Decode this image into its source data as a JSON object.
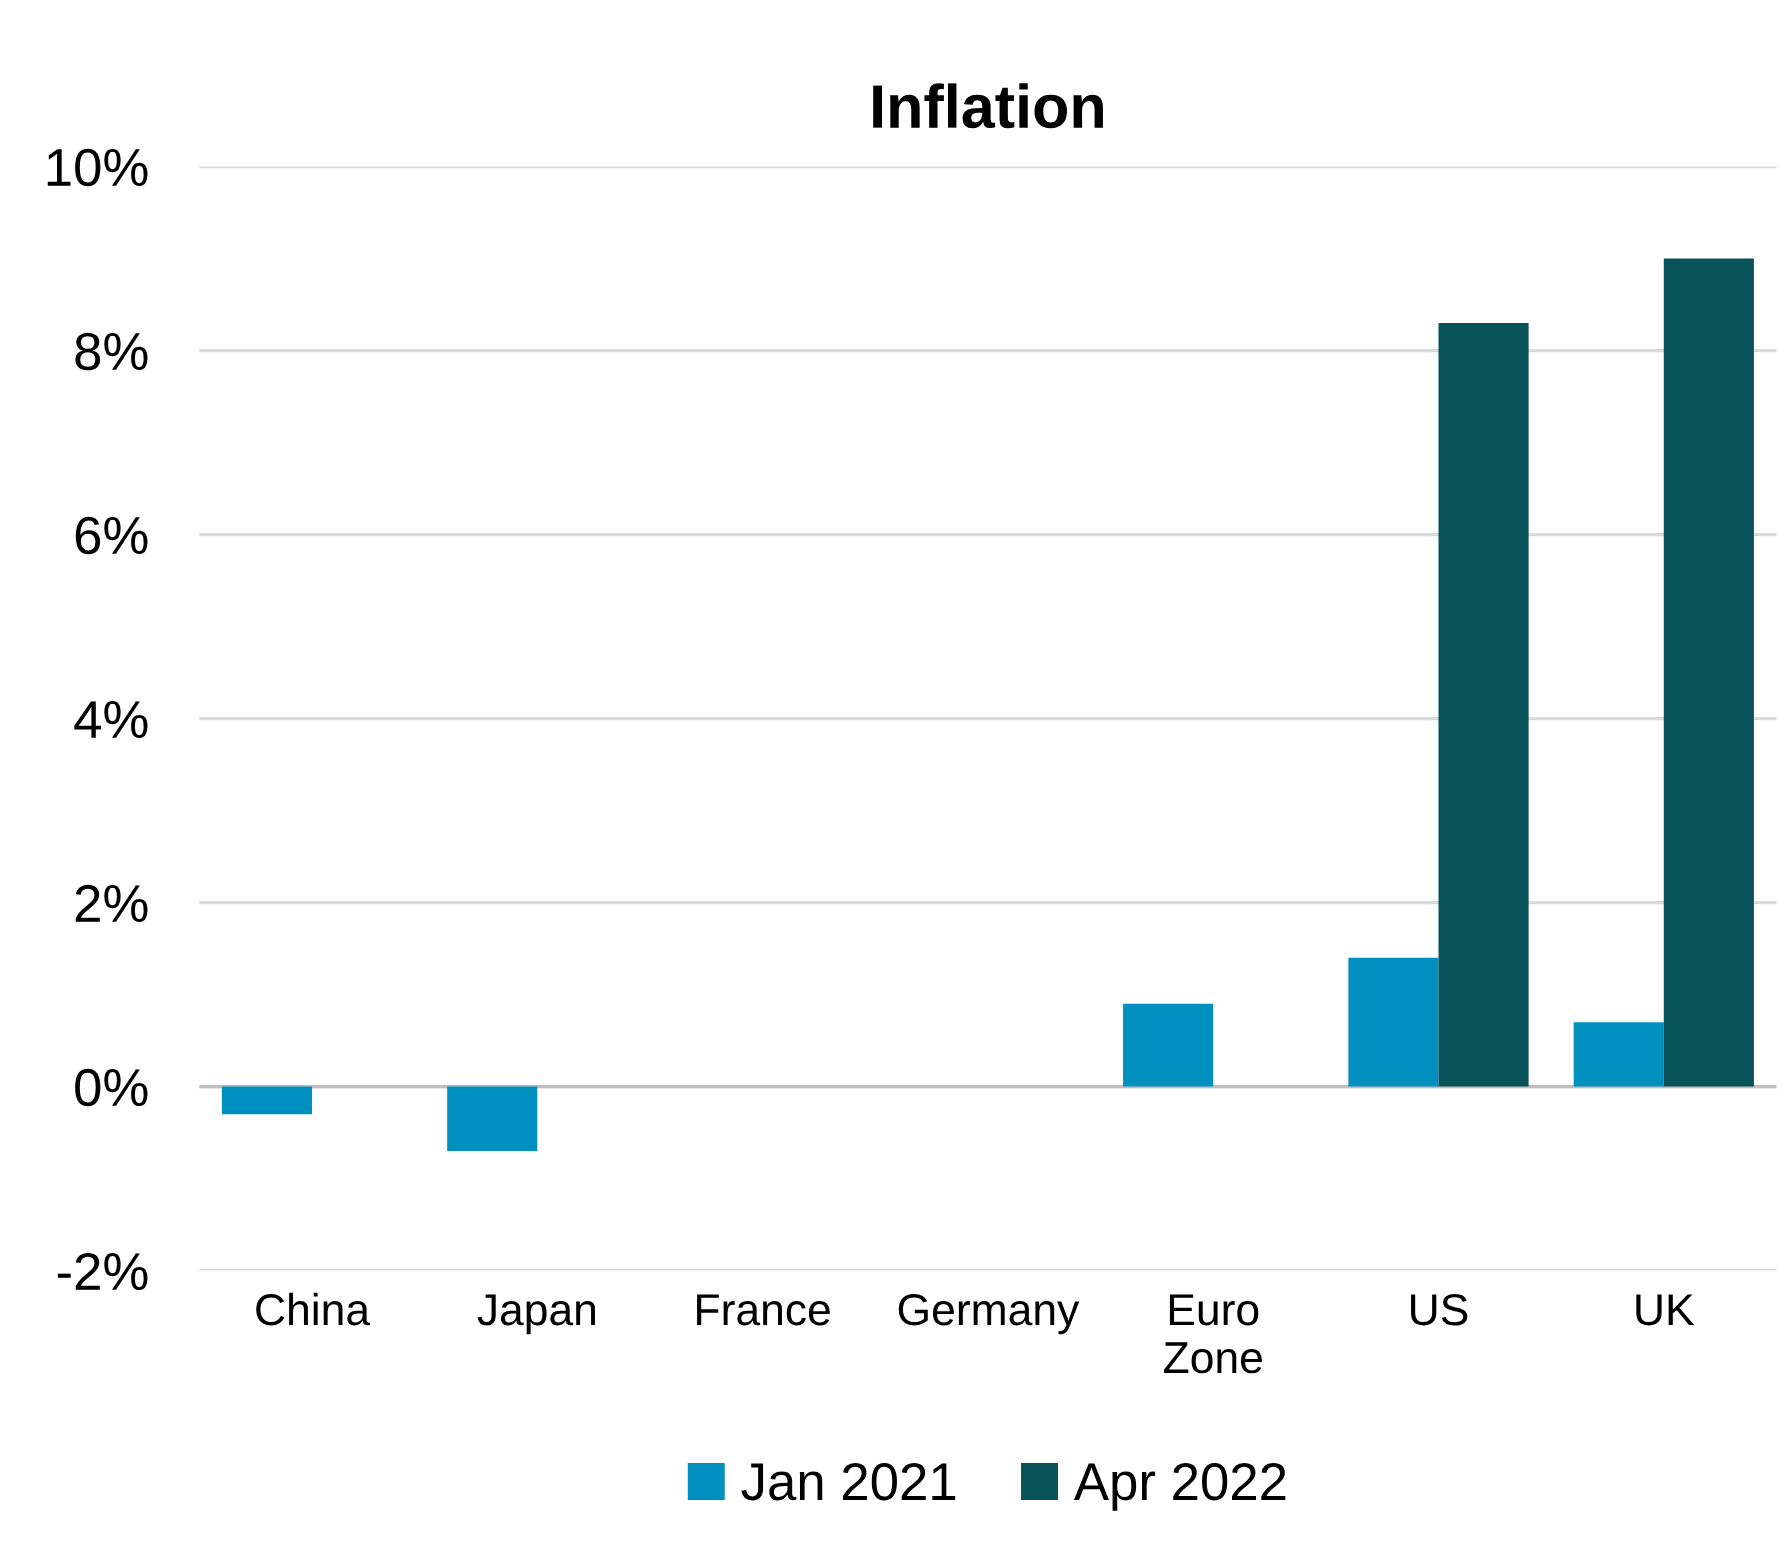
{
  "chart_data": {
    "type": "bar",
    "title": "Inflation",
    "categories": [
      "China",
      "Japan",
      "France",
      "Germany",
      "Euro\nZone",
      "US",
      "UK"
    ],
    "series": [
      {
        "name": "Jan 2021",
        "color": "#0090bf",
        "values": [
          -0.3,
          -0.7,
          null,
          null,
          0.9,
          1.4,
          0.7
        ]
      },
      {
        "name": "Apr 2022",
        "color": "#08525a",
        "values": [
          null,
          null,
          null,
          null,
          null,
          8.3,
          9.0
        ]
      }
    ],
    "ylim": [
      -2,
      10
    ],
    "yticks": [
      {
        "value": -2,
        "label": "-2%"
      },
      {
        "value": 0,
        "label": "0%"
      },
      {
        "value": 2,
        "label": "2%"
      },
      {
        "value": 4,
        "label": "4%"
      },
      {
        "value": 6,
        "label": "6%"
      },
      {
        "value": 8,
        "label": "8%"
      },
      {
        "value": 10,
        "label": "10%"
      }
    ],
    "grid": "y",
    "legend": "bottom"
  }
}
